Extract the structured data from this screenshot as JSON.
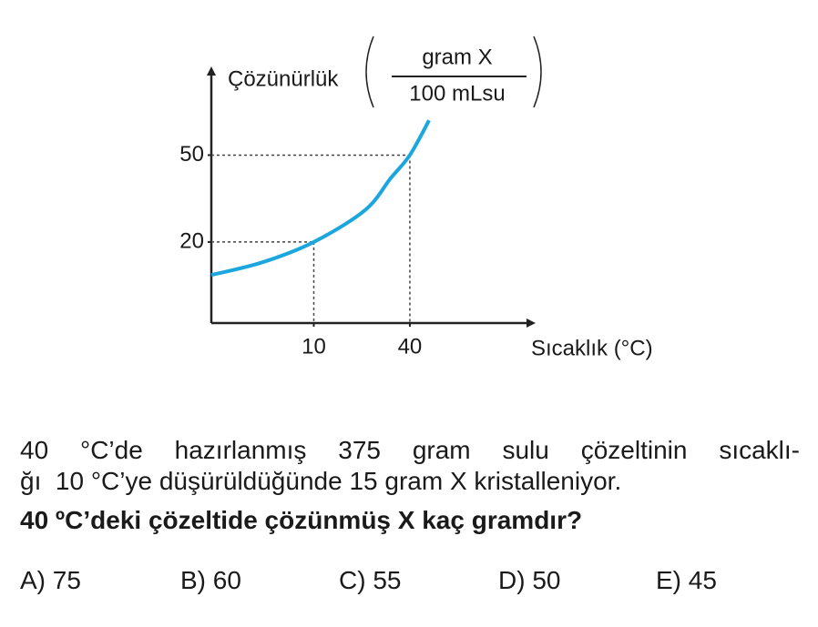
{
  "chart_data": {
    "type": "line",
    "y_label": "Çözünürlük",
    "y_unit_numerator": "gram X",
    "y_unit_denominator": "100 mLsu",
    "x_label": "Sıcaklık (°C)",
    "x": [
      -22,
      -6,
      10,
      26,
      34,
      40,
      46
    ],
    "values": [
      8.6,
      13,
      20,
      31,
      42,
      50,
      62
    ],
    "color": "#1ba6de",
    "xlim": [
      -22,
      77
    ],
    "ylim": [
      -8,
      80
    ],
    "xticks": [
      10,
      40
    ],
    "yticks": [
      20,
      50
    ]
  },
  "question": {
    "lines": [
      "40 °C’de hazırlanmış 375 gram sulu çözeltinin sıcaklı-",
      "ğı  10 °C’ye düşürüldüğünde 15 gram X kristalleniyor."
    ],
    "prompt": "40 ºC’deki çözeltide çözünmüş X kaç gramdır?",
    "options": [
      "A) 75",
      "B) 60",
      "C) 55",
      "D) 50",
      "E) 45"
    ]
  }
}
